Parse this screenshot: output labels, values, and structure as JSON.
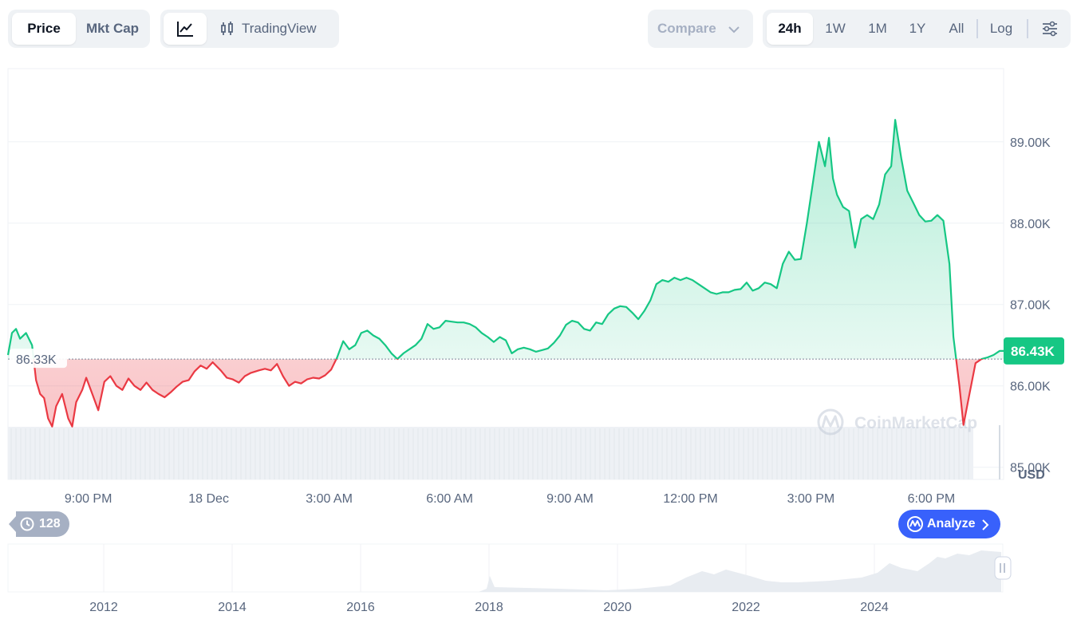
{
  "toolbar": {
    "metric_tabs": [
      "Price",
      "Mkt Cap"
    ],
    "view_tabs": {
      "tradingview_label": "TradingView"
    },
    "compare_label": "Compare",
    "ranges": [
      "24h",
      "1W",
      "1M",
      "1Y",
      "All"
    ],
    "log_label": "Log"
  },
  "chart_data": {
    "type": "line",
    "baseline_value": 86330,
    "baseline_label": "86.33K",
    "current_value": 86430,
    "current_label": "86.43K",
    "y_unit": "USD",
    "y_ticks": [
      "89.00K",
      "88.00K",
      "87.00K",
      "86.00K",
      "85.00K"
    ],
    "y_tick_values": [
      89000,
      88000,
      87000,
      86000,
      85000
    ],
    "ylim": [
      84850,
      89900
    ],
    "x_ticks": [
      "9:00 PM",
      "18 Dec",
      "3:00 AM",
      "6:00 AM",
      "9:00 AM",
      "12:00 PM",
      "3:00 PM",
      "6:00 PM"
    ],
    "x_tick_hours": [
      21,
      24,
      27,
      30,
      33,
      36,
      39,
      42
    ],
    "xlim_hours": [
      19.0,
      43.8
    ],
    "series": [
      {
        "values": [
          [
            19.0,
            86380
          ],
          [
            19.1,
            86650
          ],
          [
            19.2,
            86700
          ],
          [
            19.3,
            86580
          ],
          [
            19.45,
            86650
          ],
          [
            19.6,
            86500
          ],
          [
            19.7,
            86070
          ],
          [
            19.8,
            85900
          ],
          [
            19.9,
            85850
          ],
          [
            20.0,
            85600
          ],
          [
            20.1,
            85500
          ],
          [
            20.2,
            85750
          ],
          [
            20.35,
            85900
          ],
          [
            20.5,
            85600
          ],
          [
            20.6,
            85500
          ],
          [
            20.7,
            85800
          ],
          [
            20.85,
            85950
          ],
          [
            20.95,
            86100
          ],
          [
            21.1,
            85900
          ],
          [
            21.25,
            85700
          ],
          [
            21.4,
            86050
          ],
          [
            21.55,
            86120
          ],
          [
            21.7,
            86000
          ],
          [
            21.85,
            85950
          ],
          [
            22.0,
            86090
          ],
          [
            22.15,
            86000
          ],
          [
            22.3,
            85950
          ],
          [
            22.45,
            86040
          ],
          [
            22.6,
            85950
          ],
          [
            22.75,
            85900
          ],
          [
            22.9,
            85860
          ],
          [
            23.05,
            85920
          ],
          [
            23.2,
            85990
          ],
          [
            23.35,
            86050
          ],
          [
            23.5,
            86070
          ],
          [
            23.65,
            86180
          ],
          [
            23.8,
            86250
          ],
          [
            23.95,
            86210
          ],
          [
            24.1,
            86290
          ],
          [
            24.3,
            86190
          ],
          [
            24.45,
            86100
          ],
          [
            24.6,
            86080
          ],
          [
            24.75,
            86040
          ],
          [
            24.9,
            86120
          ],
          [
            25.05,
            86160
          ],
          [
            25.25,
            86190
          ],
          [
            25.4,
            86210
          ],
          [
            25.55,
            86190
          ],
          [
            25.7,
            86270
          ],
          [
            25.85,
            86120
          ],
          [
            26.0,
            86000
          ],
          [
            26.15,
            86050
          ],
          [
            26.3,
            86030
          ],
          [
            26.45,
            86080
          ],
          [
            26.6,
            86100
          ],
          [
            26.75,
            86090
          ],
          [
            26.9,
            86130
          ],
          [
            27.05,
            86200
          ],
          [
            27.2,
            86350
          ],
          [
            27.35,
            86550
          ],
          [
            27.5,
            86450
          ],
          [
            27.65,
            86500
          ],
          [
            27.8,
            86650
          ],
          [
            27.95,
            86680
          ],
          [
            28.1,
            86620
          ],
          [
            28.25,
            86580
          ],
          [
            28.4,
            86500
          ],
          [
            28.55,
            86400
          ],
          [
            28.7,
            86330
          ],
          [
            28.85,
            86400
          ],
          [
            29.0,
            86450
          ],
          [
            29.15,
            86500
          ],
          [
            29.3,
            86580
          ],
          [
            29.45,
            86760
          ],
          [
            29.6,
            86700
          ],
          [
            29.75,
            86720
          ],
          [
            29.9,
            86800
          ],
          [
            30.05,
            86790
          ],
          [
            30.2,
            86780
          ],
          [
            30.35,
            86780
          ],
          [
            30.5,
            86760
          ],
          [
            30.65,
            86720
          ],
          [
            30.8,
            86650
          ],
          [
            30.95,
            86600
          ],
          [
            31.1,
            86540
          ],
          [
            31.25,
            86600
          ],
          [
            31.4,
            86560
          ],
          [
            31.55,
            86400
          ],
          [
            31.7,
            86450
          ],
          [
            31.85,
            86470
          ],
          [
            32.0,
            86450
          ],
          [
            32.15,
            86420
          ],
          [
            32.3,
            86440
          ],
          [
            32.45,
            86460
          ],
          [
            32.6,
            86530
          ],
          [
            32.75,
            86620
          ],
          [
            32.9,
            86750
          ],
          [
            33.05,
            86800
          ],
          [
            33.2,
            86780
          ],
          [
            33.35,
            86700
          ],
          [
            33.5,
            86680
          ],
          [
            33.65,
            86780
          ],
          [
            33.8,
            86760
          ],
          [
            33.95,
            86880
          ],
          [
            34.1,
            86950
          ],
          [
            34.25,
            86980
          ],
          [
            34.4,
            86970
          ],
          [
            34.55,
            86900
          ],
          [
            34.7,
            86820
          ],
          [
            34.85,
            86920
          ],
          [
            35.0,
            87050
          ],
          [
            35.15,
            87250
          ],
          [
            35.3,
            87300
          ],
          [
            35.45,
            87280
          ],
          [
            35.6,
            87330
          ],
          [
            35.75,
            87300
          ],
          [
            35.9,
            87330
          ],
          [
            36.05,
            87300
          ],
          [
            36.2,
            87250
          ],
          [
            36.35,
            87200
          ],
          [
            36.5,
            87150
          ],
          [
            36.65,
            87130
          ],
          [
            36.8,
            87150
          ],
          [
            36.95,
            87150
          ],
          [
            37.1,
            87180
          ],
          [
            37.25,
            87190
          ],
          [
            37.4,
            87270
          ],
          [
            37.55,
            87170
          ],
          [
            37.7,
            87200
          ],
          [
            37.85,
            87270
          ],
          [
            38.0,
            87250
          ],
          [
            38.15,
            87200
          ],
          [
            38.3,
            87500
          ],
          [
            38.45,
            87650
          ],
          [
            38.6,
            87550
          ],
          [
            38.75,
            87560
          ],
          [
            38.9,
            88000
          ],
          [
            39.05,
            88500
          ],
          [
            39.2,
            89000
          ],
          [
            39.35,
            88700
          ],
          [
            39.45,
            89050
          ],
          [
            39.55,
            88550
          ],
          [
            39.65,
            88350
          ],
          [
            39.8,
            88200
          ],
          [
            39.95,
            88150
          ],
          [
            40.1,
            87700
          ],
          [
            40.25,
            88050
          ],
          [
            40.4,
            88100
          ],
          [
            40.55,
            88050
          ],
          [
            40.7,
            88230
          ],
          [
            40.85,
            88600
          ],
          [
            41.0,
            88700
          ],
          [
            41.1,
            89270
          ],
          [
            41.25,
            88800
          ],
          [
            41.4,
            88400
          ],
          [
            41.55,
            88250
          ],
          [
            41.7,
            88100
          ],
          [
            41.85,
            88020
          ],
          [
            42.0,
            88030
          ],
          [
            42.15,
            88100
          ],
          [
            42.3,
            88030
          ],
          [
            42.45,
            87500
          ],
          [
            42.55,
            86600
          ],
          [
            42.7,
            86000
          ],
          [
            42.8,
            85520
          ],
          [
            42.95,
            85900
          ],
          [
            43.1,
            86280
          ],
          [
            43.25,
            86330
          ],
          [
            43.4,
            86350
          ],
          [
            43.55,
            86380
          ],
          [
            43.7,
            86430
          ],
          [
            43.8,
            86430
          ]
        ]
      }
    ],
    "volume_axis_ticks": [
      "2012",
      "2014",
      "2016",
      "2018",
      "2020",
      "2022",
      "2024"
    ],
    "colors": {
      "up": "#16c784",
      "down": "#ea3943",
      "badge": "#16c784"
    }
  },
  "watermark": "CoinMarketCap",
  "history_count": "128",
  "analyze_label": "Analyze"
}
